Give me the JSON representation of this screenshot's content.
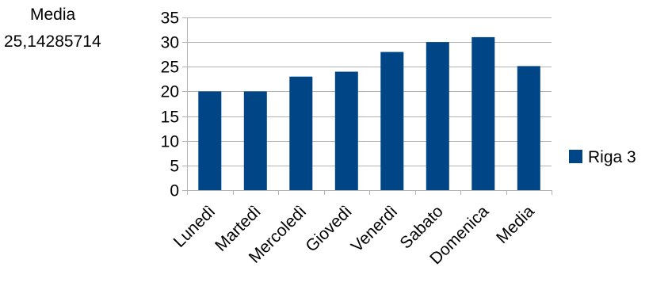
{
  "sheet": {
    "label": "Media",
    "value": "25,14285714"
  },
  "colors": {
    "bar": "#004586",
    "axis": "#b3b3b3",
    "grid": "#b3b3b3"
  },
  "chart_data": {
    "type": "bar",
    "categories": [
      "Lunedì",
      "Martedì",
      "Mercoledì",
      "Giovedì",
      "Venerdì",
      "Sabato",
      "Domenica",
      "Media"
    ],
    "series": [
      {
        "name": "Riga 3",
        "values": [
          20,
          20,
          23,
          24,
          28,
          30,
          31,
          25.14285714
        ]
      }
    ],
    "title": "",
    "xlabel": "",
    "ylabel": "",
    "ylim": [
      0,
      35
    ],
    "yticks": [
      0,
      5,
      10,
      15,
      20,
      25,
      30,
      35
    ],
    "grid": true,
    "legend": "right"
  }
}
